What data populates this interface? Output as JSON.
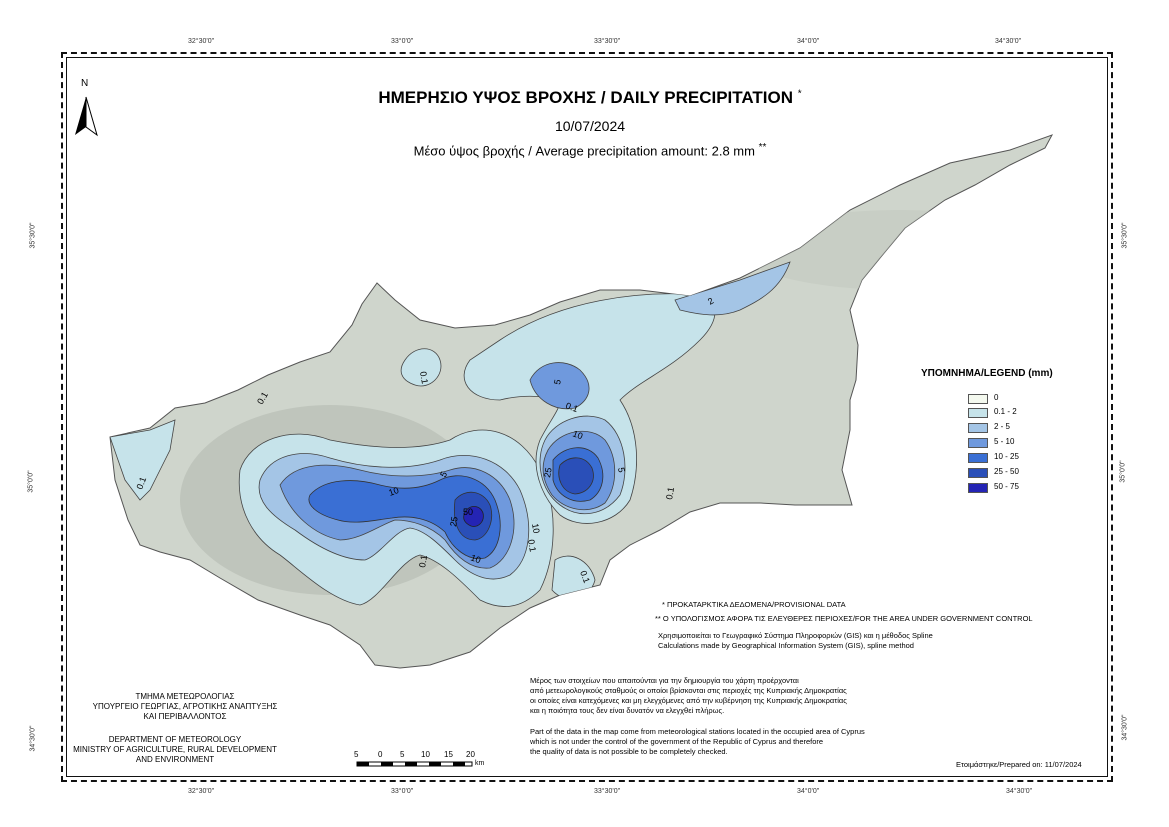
{
  "map": {
    "title": "ΗΜΕΡΗΣΙΟ ΥΨΟΣ ΒΡΟΧΗΣ / DAILY PRECIPITATION",
    "title_mark": "*",
    "date": "10/07/2024",
    "average": "Μέσο ύψος βροχής / Average precipitation amount: 2.8 mm",
    "average_mark": "**"
  },
  "coords": {
    "top": [
      "32°30'0\"",
      "33°0'0\"",
      "33°30'0\"",
      "34°0'0\"",
      "34°30'0\""
    ],
    "bottom": [
      "32°30'0\"",
      "33°0'0\"",
      "33°30'0\"",
      "34°0'0\"",
      "34°30'0\""
    ],
    "left": [
      "35°30'0\"",
      "35°0'0\"",
      "34°30'0\""
    ],
    "right": [
      "35°30'0\"",
      "35°0'0\"",
      "34°30'0\""
    ]
  },
  "north_label": "N",
  "legend": {
    "title": "ΥΠΟΜΝΗΜΑ/LEGEND (mm)",
    "items": [
      {
        "label": "0",
        "color": "#f4f9ef"
      },
      {
        "label": "0.1 - 2",
        "color": "#c6e3ea"
      },
      {
        "label": "2 - 5",
        "color": "#a4c5e6"
      },
      {
        "label": "5 - 10",
        "color": "#6f99dd"
      },
      {
        "label": "10 - 25",
        "color": "#3a6fd4"
      },
      {
        "label": "25 - 50",
        "color": "#2a4fb8"
      },
      {
        "label": "50 - 75",
        "color": "#2424b4"
      }
    ]
  },
  "contour_labels": [
    "0.1",
    "0.1",
    "0.1",
    "0.1",
    "0.1",
    "0.1",
    "0.1",
    "0.1",
    "2",
    "5",
    "5",
    "10",
    "10",
    "10",
    "25",
    "25",
    "50",
    "5",
    "10"
  ],
  "notes": {
    "provisional": "* ΠΡΟΚΑΤΑΡΚΤΙΚΑ ΔΕΔΟΜΕΝΑ/PROVISIONAL DATA",
    "calculation": "** Ο ΥΠΟΛΟΓΙΣΜΟΣ ΑΦΟΡΑ ΤΙΣ ΕΛΕΥΘΕΡΕΣ ΠΕΡΙΟΧΕΣ/FOR THE AREA UNDER GOVERNMENT CONTROL",
    "gis_gr": "Χρησιμοποιείται το Γεωγραφικό Σύστημα Πληροφοριών (GIS) και η μέθοδος Spline",
    "gis_en": "Calculations made by Geographical Information System (GIS), spline method",
    "occupied_gr": [
      "Μέρος των στοιχείων που απαιτούνται για την δημιουργία του χάρτη προέρχονται",
      "από μετεωρολογικούς σταθμούς οι οποίοι βρίσκονται στις περιοχές της Κυπριακής Δημοκρατίας",
      "οι οποίες είναι κατεχόμενες και μη ελεγχόμενες από την κυβέρνηση της Κυπριακής Δημοκρατίας",
      "και η ποιότητα τους δεν είναι δυνατόν να ελεγχθεί πλήρως."
    ],
    "occupied_en": [
      "Part of the data in the map come from meteorological stations located in the occupied area of Cyprus",
      "which is not under the control of the government of the Republic of Cyprus and therefore",
      "the quality of data is not possible to be completely checked."
    ],
    "prepared": "Ετοιμάστηκε/Prepared on: 11/07/2024"
  },
  "department": {
    "gr": [
      "ΤΜΗΜΑ ΜΕΤΕΩΡΟΛΟΓΙΑΣ",
      "ΥΠΟΥΡΓΕΙΟ ΓΕΩΡΓΙΑΣ, ΑΓΡΟΤΙΚΗΣ ΑΝΑΠΤΥΞΗΣ",
      "ΚΑΙ ΠΕΡΙΒΑΛΛΟΝΤΟΣ"
    ],
    "en": [
      "DEPARTMENT OF METEOROLOGY",
      "MINISTRY OF AGRICULTURE, RURAL DEVELOPMENT",
      "AND ENVIRONMENT"
    ]
  },
  "scale": {
    "numbers": [
      "5",
      "0",
      "5",
      "10",
      "15",
      "20"
    ],
    "unit": "km"
  }
}
